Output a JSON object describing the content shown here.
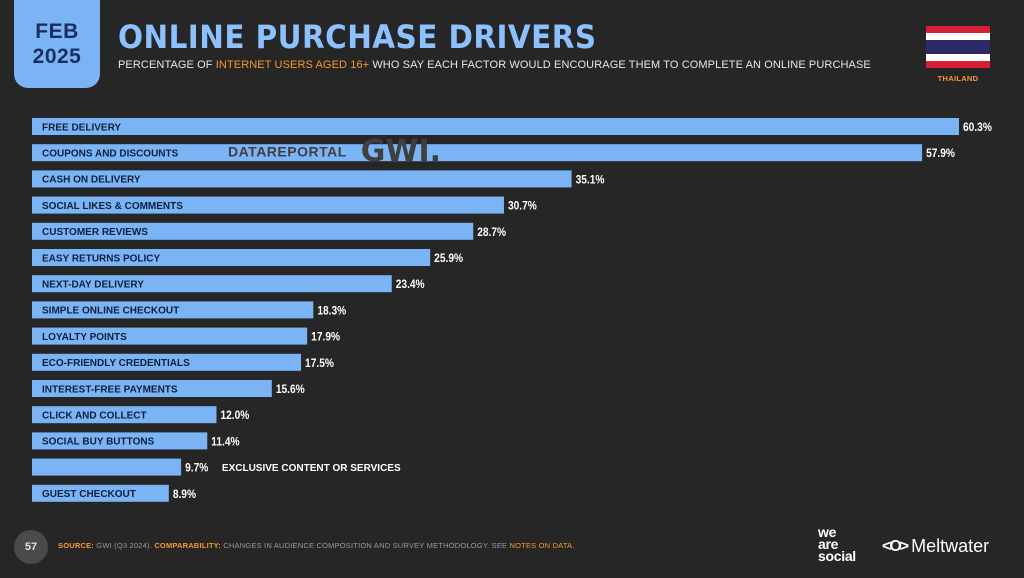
{
  "header": {
    "month": "FEB",
    "year": "2025",
    "title": "ONLINE PURCHASE DRIVERS",
    "subtitle_pre": "PERCENTAGE OF ",
    "subtitle_hl": "INTERNET USERS AGED 16+",
    "subtitle_post": " WHO SAY EACH FACTOR WOULD ENCOURAGE THEM TO COMPLETE AN ONLINE PURCHASE",
    "country": "THAILAND"
  },
  "watermark": {
    "datareportal": "DATAREPORTAL",
    "gwi": "GWI."
  },
  "colors": {
    "background": "#262626",
    "bar": "#7bb4f5",
    "title": "#8dc0ff",
    "accent": "#f59a2c"
  },
  "chart_data": {
    "type": "bar",
    "orientation": "horizontal",
    "unit": "%",
    "categories": [
      "FREE DELIVERY",
      "COUPONS AND DISCOUNTS",
      "CASH ON DELIVERY",
      "SOCIAL LIKES & COMMENTS",
      "CUSTOMER REVIEWS",
      "EASY RETURNS POLICY",
      "NEXT-DAY DELIVERY",
      "SIMPLE ONLINE CHECKOUT",
      "LOYALTY POINTS",
      "ECO-FRIENDLY CREDENTIALS",
      "INTEREST-FREE PAYMENTS",
      "CLICK AND COLLECT",
      "SOCIAL BUY BUTTONS",
      "EXCLUSIVE CONTENT OR SERVICES",
      "GUEST CHECKOUT"
    ],
    "values": [
      60.3,
      57.9,
      35.1,
      30.7,
      28.7,
      25.9,
      23.4,
      18.3,
      17.9,
      17.5,
      15.6,
      12.0,
      11.4,
      9.7,
      8.9
    ],
    "value_labels": [
      "60.3%",
      "57.9%",
      "35.1%",
      "30.7%",
      "28.7%",
      "25.9%",
      "23.4%",
      "18.3%",
      "17.9%",
      "17.5%",
      "15.6%",
      "12.0%",
      "11.4%",
      "9.7%",
      "8.9%"
    ],
    "xlim": [
      0,
      60.3
    ],
    "grid": false,
    "legend": "none"
  },
  "footer": {
    "page": "57",
    "source_label": "SOURCE:",
    "source_text": " GWI (Q3 2024). ",
    "comparability_label": "COMPARABILITY:",
    "comparability_text": " CHANGES IN AUDIENCE COMPOSITION AND SURVEY METHODOLOGY. SEE ",
    "notes_link": "NOTES ON DATA",
    "notes_end": "."
  },
  "brands": {
    "was_line1": "we",
    "was_line2": "are",
    "was_line3": "social",
    "meltwater_icon": "<O>",
    "meltwater": "Meltwater"
  }
}
